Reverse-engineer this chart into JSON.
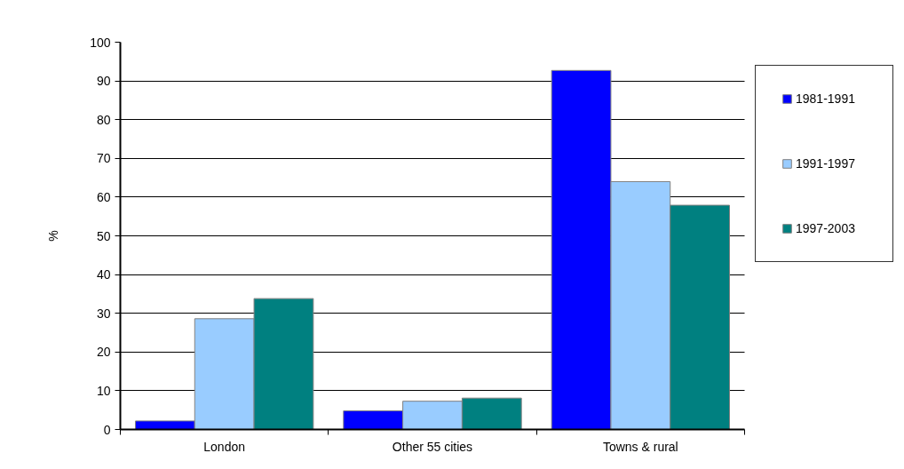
{
  "chart_data": {
    "type": "bar",
    "ylabel": "%",
    "categories": [
      "London",
      "Other 55 cities",
      "Towns & rural"
    ],
    "series": [
      {
        "name": "1981-1991",
        "color": "#0000ff",
        "values": [
          2.2,
          4.8,
          92.7
        ]
      },
      {
        "name": "1991-1997",
        "color": "#99ccff",
        "values": [
          28.6,
          7.3,
          64.0
        ]
      },
      {
        "name": "1997-2003",
        "color": "#008080",
        "values": [
          33.8,
          8.1,
          57.9
        ]
      }
    ],
    "ylim": [
      0,
      100
    ],
    "yticks": [
      0,
      10,
      20,
      30,
      40,
      50,
      60,
      70,
      80,
      90,
      100
    ],
    "grid": "y",
    "legend": "right"
  }
}
